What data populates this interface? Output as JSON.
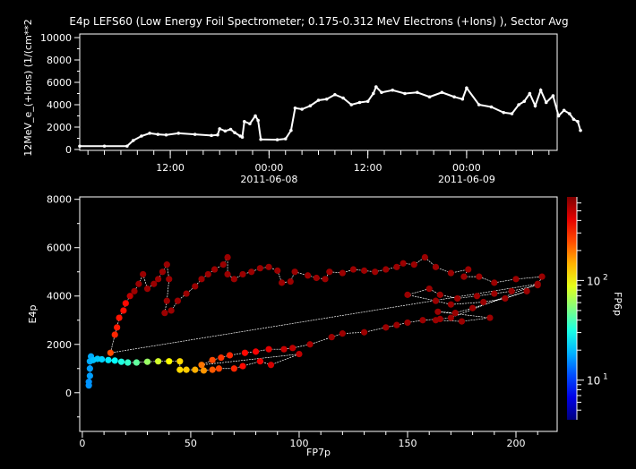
{
  "chart_data": [
    {
      "type": "line",
      "title": "E4p LEFS60 (Low Energy Foil Spectrometer; 0.175-0.312 MeV Electrons (+Ions) ), Sector Avg",
      "ylabel": "12MeV_e_(+Ions) (1/(cm**2",
      "xlabel": "",
      "ylim": [
        0,
        10400
      ],
      "xlim": [
        "2011-06-07T01:00",
        "2011-06-09T11:00"
      ],
      "yticks": [
        "0",
        "2000",
        "4000",
        "6000",
        "8000",
        "10000"
      ],
      "xticks": [
        {
          "time": "2011-06-07T12:00",
          "label": "12:00",
          "sublabel": ""
        },
        {
          "time": "2011-06-08T00:00",
          "label": "00:00",
          "sublabel": "2011-06-08"
        },
        {
          "time": "2011-06-08T12:00",
          "label": "12:00",
          "sublabel": ""
        },
        {
          "time": "2011-06-09T00:00",
          "label": "00:00",
          "sublabel": "2011-06-09"
        }
      ],
      "line_color": "#ffffff",
      "points": [
        [
          "2011-06-07T01:00",
          300
        ],
        [
          "2011-06-07T04:00",
          300
        ],
        [
          "2011-06-07T06:45",
          300
        ],
        [
          "2011-06-07T07:30",
          800
        ],
        [
          "2011-06-07T08:30",
          1200
        ],
        [
          "2011-06-07T09:30",
          1450
        ],
        [
          "2011-06-07T10:30",
          1350
        ],
        [
          "2011-06-07T11:30",
          1300
        ],
        [
          "2011-06-07T13:00",
          1450
        ],
        [
          "2011-06-07T15:00",
          1350
        ],
        [
          "2011-06-07T17:00",
          1250
        ],
        [
          "2011-06-07T17:45",
          1300
        ],
        [
          "2011-06-07T18:00",
          1850
        ],
        [
          "2011-06-07T18:40",
          1650
        ],
        [
          "2011-06-07T19:20",
          1800
        ],
        [
          "2011-06-07T19:50",
          1500
        ],
        [
          "2011-06-07T20:30",
          1200
        ],
        [
          "2011-06-07T20:45",
          1100
        ],
        [
          "2011-06-07T21:00",
          2500
        ],
        [
          "2011-06-07T21:40",
          2300
        ],
        [
          "2011-06-07T22:20",
          3000
        ],
        [
          "2011-06-07T22:40",
          2600
        ],
        [
          "2011-06-07T23:00",
          900
        ],
        [
          "2011-06-08T01:00",
          870
        ],
        [
          "2011-06-08T02:00",
          950
        ],
        [
          "2011-06-08T02:40",
          1700
        ],
        [
          "2011-06-08T03:10",
          3700
        ],
        [
          "2011-06-08T04:00",
          3600
        ],
        [
          "2011-06-08T05:00",
          3900
        ],
        [
          "2011-06-08T06:00",
          4400
        ],
        [
          "2011-06-08T07:00",
          4500
        ],
        [
          "2011-06-08T08:00",
          4900
        ],
        [
          "2011-06-08T09:00",
          4600
        ],
        [
          "2011-06-08T10:00",
          4000
        ],
        [
          "2011-06-08T11:00",
          4200
        ],
        [
          "2011-06-08T12:00",
          4300
        ],
        [
          "2011-06-08T12:40",
          5000
        ],
        [
          "2011-06-08T13:00",
          5600
        ],
        [
          "2011-06-08T13:40",
          5100
        ],
        [
          "2011-06-08T15:00",
          5300
        ],
        [
          "2011-06-08T16:30",
          5000
        ],
        [
          "2011-06-08T18:00",
          5100
        ],
        [
          "2011-06-08T19:30",
          4700
        ],
        [
          "2011-06-08T21:00",
          5100
        ],
        [
          "2011-06-08T22:30",
          4700
        ],
        [
          "2011-06-08T23:30",
          4500
        ],
        [
          "2011-06-09T00:00",
          5500
        ],
        [
          "2011-06-09T01:30",
          4000
        ],
        [
          "2011-06-09T03:00",
          3800
        ],
        [
          "2011-06-09T04:30",
          3300
        ],
        [
          "2011-06-09T05:30",
          3200
        ],
        [
          "2011-06-09T06:20",
          4000
        ],
        [
          "2011-06-09T07:00",
          4300
        ],
        [
          "2011-06-09T07:40",
          5000
        ],
        [
          "2011-06-09T08:20",
          3900
        ],
        [
          "2011-06-09T09:00",
          5300
        ],
        [
          "2011-06-09T09:40",
          4200
        ],
        [
          "2011-06-09T10:30",
          4800
        ],
        [
          "2011-06-09T11:10",
          3000
        ],
        [
          "2011-06-09T11:50",
          3500
        ],
        [
          "2011-06-09T12:30",
          3200
        ],
        [
          "2011-06-09T13:00",
          2700
        ],
        [
          "2011-06-09T13:30",
          2500
        ],
        [
          "2011-06-09T13:50",
          1700
        ]
      ]
    },
    {
      "type": "scatter",
      "title": "",
      "xlabel": "FP7p",
      "ylabel": "E4p",
      "xlim": [
        -1.2,
        219
      ],
      "ylim": [
        -1600,
        8100
      ],
      "xticks": [
        "0",
        "50",
        "100",
        "150",
        "200"
      ],
      "yticks": [
        "0",
        "2000",
        "4000",
        "6000",
        "8000"
      ],
      "colorbar": {
        "label": "FP6p",
        "scale": "log",
        "range": [
          4,
          690
        ],
        "ticks": [
          "10",
          "10"
        ],
        "tick_exponents": [
          "1",
          "2"
        ],
        "tick_values": [
          10,
          100
        ],
        "colormap": "jet"
      },
      "connector_color": "#ffffff",
      "points": [
        [
          3,
          300,
          16
        ],
        [
          3,
          450,
          16
        ],
        [
          3.5,
          700,
          17
        ],
        [
          3.5,
          1000,
          17
        ],
        [
          3.5,
          1300,
          18
        ],
        [
          4,
          1500,
          18
        ],
        [
          5,
          1350,
          20
        ],
        [
          7,
          1400,
          21
        ],
        [
          9,
          1380,
          22
        ],
        [
          12,
          1350,
          25
        ],
        [
          15,
          1330,
          28
        ],
        [
          18,
          1280,
          32
        ],
        [
          21,
          1250,
          36
        ],
        [
          25,
          1250,
          45
        ],
        [
          30,
          1280,
          60
        ],
        [
          35,
          1300,
          80
        ],
        [
          40,
          1300,
          100
        ],
        [
          45,
          1300,
          120
        ],
        [
          45,
          950,
          120
        ],
        [
          48,
          950,
          130
        ],
        [
          52,
          950,
          150
        ],
        [
          56,
          920,
          170
        ],
        [
          60,
          950,
          230
        ],
        [
          63,
          1000,
          260
        ],
        [
          70,
          1000,
          300
        ],
        [
          74,
          1100,
          350
        ],
        [
          82,
          1300,
          400
        ],
        [
          87,
          1150,
          450
        ],
        [
          100,
          1600,
          500
        ],
        [
          55,
          1150,
          200
        ],
        [
          60,
          1350,
          250
        ],
        [
          64,
          1450,
          280
        ],
        [
          68,
          1550,
          300
        ],
        [
          75,
          1650,
          350
        ],
        [
          80,
          1700,
          380
        ],
        [
          86,
          1800,
          420
        ],
        [
          93,
          1800,
          480
        ],
        [
          97,
          1850,
          500
        ],
        [
          105,
          2000,
          560
        ],
        [
          115,
          2300,
          600
        ],
        [
          120,
          2450,
          600
        ],
        [
          130,
          2500,
          600
        ],
        [
          140,
          2700,
          600
        ],
        [
          145,
          2800,
          600
        ],
        [
          150,
          2900,
          600
        ],
        [
          157,
          3000,
          600
        ],
        [
          165,
          3050,
          600
        ],
        [
          170,
          3100,
          600
        ],
        [
          210,
          4500,
          600
        ],
        [
          13,
          1650,
          250
        ],
        [
          15,
          2400,
          300
        ],
        [
          16,
          2700,
          320
        ],
        [
          17,
          3100,
          330
        ],
        [
          19,
          3400,
          340
        ],
        [
          20,
          3700,
          350
        ],
        [
          22,
          4000,
          500
        ],
        [
          24,
          4200,
          600
        ],
        [
          26,
          4500,
          600
        ],
        [
          28,
          4900,
          600
        ],
        [
          30,
          4300,
          600
        ],
        [
          33,
          4500,
          600
        ],
        [
          35,
          4700,
          600
        ],
        [
          37,
          5000,
          600
        ],
        [
          39,
          5300,
          600
        ],
        [
          40,
          4700,
          600
        ],
        [
          39,
          3800,
          600
        ],
        [
          38,
          3300,
          600
        ],
        [
          41,
          3400,
          600
        ],
        [
          44,
          3800,
          600
        ],
        [
          48,
          4100,
          600
        ],
        [
          52,
          4400,
          600
        ],
        [
          55,
          4700,
          600
        ],
        [
          58,
          4900,
          600
        ],
        [
          61,
          5100,
          600
        ],
        [
          65,
          5300,
          600
        ],
        [
          67,
          5600,
          600
        ],
        [
          67,
          4900,
          600
        ],
        [
          70,
          4700,
          600
        ],
        [
          74,
          4900,
          600
        ],
        [
          78,
          5000,
          600
        ],
        [
          82,
          5150,
          600
        ],
        [
          86,
          5200,
          600
        ],
        [
          90,
          5050,
          600
        ],
        [
          92,
          4550,
          600
        ],
        [
          96,
          4600,
          600
        ],
        [
          98,
          5000,
          600
        ],
        [
          104,
          4850,
          600
        ],
        [
          108,
          4750,
          600
        ],
        [
          112,
          4700,
          600
        ],
        [
          114,
          5000,
          600
        ],
        [
          120,
          4950,
          600
        ],
        [
          125,
          5100,
          600
        ],
        [
          130,
          5050,
          600
        ],
        [
          135,
          5000,
          600
        ],
        [
          140,
          5100,
          600
        ],
        [
          145,
          5200,
          600
        ],
        [
          148,
          5350,
          600
        ],
        [
          153,
          5300,
          600
        ],
        [
          158,
          5600,
          600
        ],
        [
          163,
          5200,
          600
        ],
        [
          170,
          4950,
          600
        ],
        [
          178,
          5100,
          600
        ],
        [
          176,
          4800,
          600
        ],
        [
          183,
          4800,
          600
        ],
        [
          190,
          4550,
          600
        ],
        [
          200,
          4700,
          600
        ],
        [
          212,
          4800,
          600
        ],
        [
          210,
          4450,
          600
        ],
        [
          198,
          4200,
          600
        ],
        [
          190,
          4100,
          600
        ],
        [
          182,
          4000,
          600
        ],
        [
          173,
          3900,
          600
        ],
        [
          165,
          4050,
          600
        ],
        [
          160,
          4300,
          600
        ],
        [
          150,
          4050,
          600
        ],
        [
          163,
          3800,
          600
        ],
        [
          170,
          3650,
          600
        ],
        [
          185,
          3750,
          600
        ],
        [
          195,
          3900,
          600
        ],
        [
          205,
          4200,
          600
        ],
        [
          180,
          3500,
          600
        ],
        [
          172,
          3300,
          600
        ],
        [
          164,
          3350,
          600
        ],
        [
          188,
          3100,
          600
        ],
        [
          175,
          2950,
          600
        ],
        [
          163,
          3000,
          600
        ]
      ]
    }
  ]
}
